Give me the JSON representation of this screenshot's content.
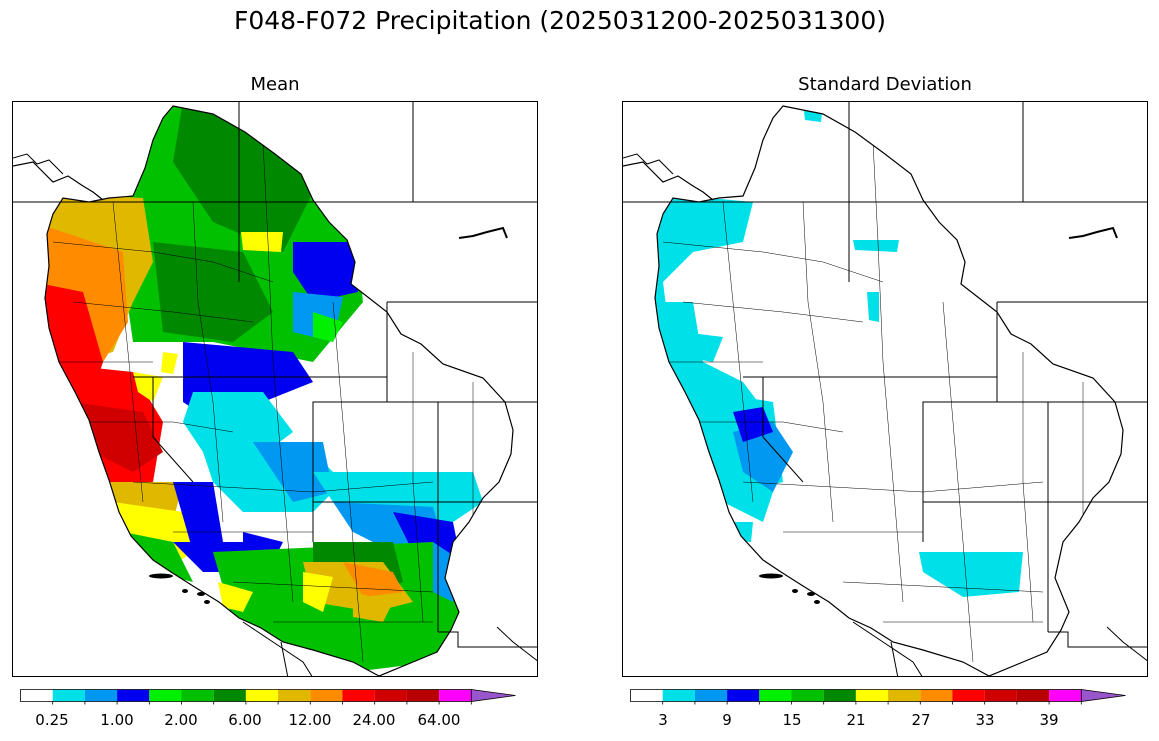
{
  "figure": {
    "title": "F048-F072 Precipitation (2025031200-2025031300)"
  },
  "panels": [
    {
      "title": "Mean",
      "colorbar": {
        "colors": [
          "#ffffff",
          "#00e0e8",
          "#0098f0",
          "#0000f0",
          "#00f000",
          "#00c000",
          "#008800",
          "#ffff00",
          "#e0b800",
          "#ff8c00",
          "#ff0000",
          "#d00000",
          "#b80000",
          "#ff00ff",
          "#9955cc"
        ],
        "tick_labels": [
          "0.25",
          "1.00",
          "2.00",
          "6.00",
          "12.00",
          "24.00",
          "64.00"
        ],
        "extend": "max"
      }
    },
    {
      "title": "Standard Deviation",
      "colorbar": {
        "colors": [
          "#ffffff",
          "#00e0e8",
          "#0098f0",
          "#0000f0",
          "#00f000",
          "#00c000",
          "#008800",
          "#ffff00",
          "#e0b800",
          "#ff8c00",
          "#ff0000",
          "#d00000",
          "#b80000",
          "#ff00ff",
          "#9955cc"
        ],
        "tick_labels": [
          "3",
          "9",
          "15",
          "21",
          "27",
          "33",
          "39"
        ],
        "extend": "max"
      }
    }
  ]
}
